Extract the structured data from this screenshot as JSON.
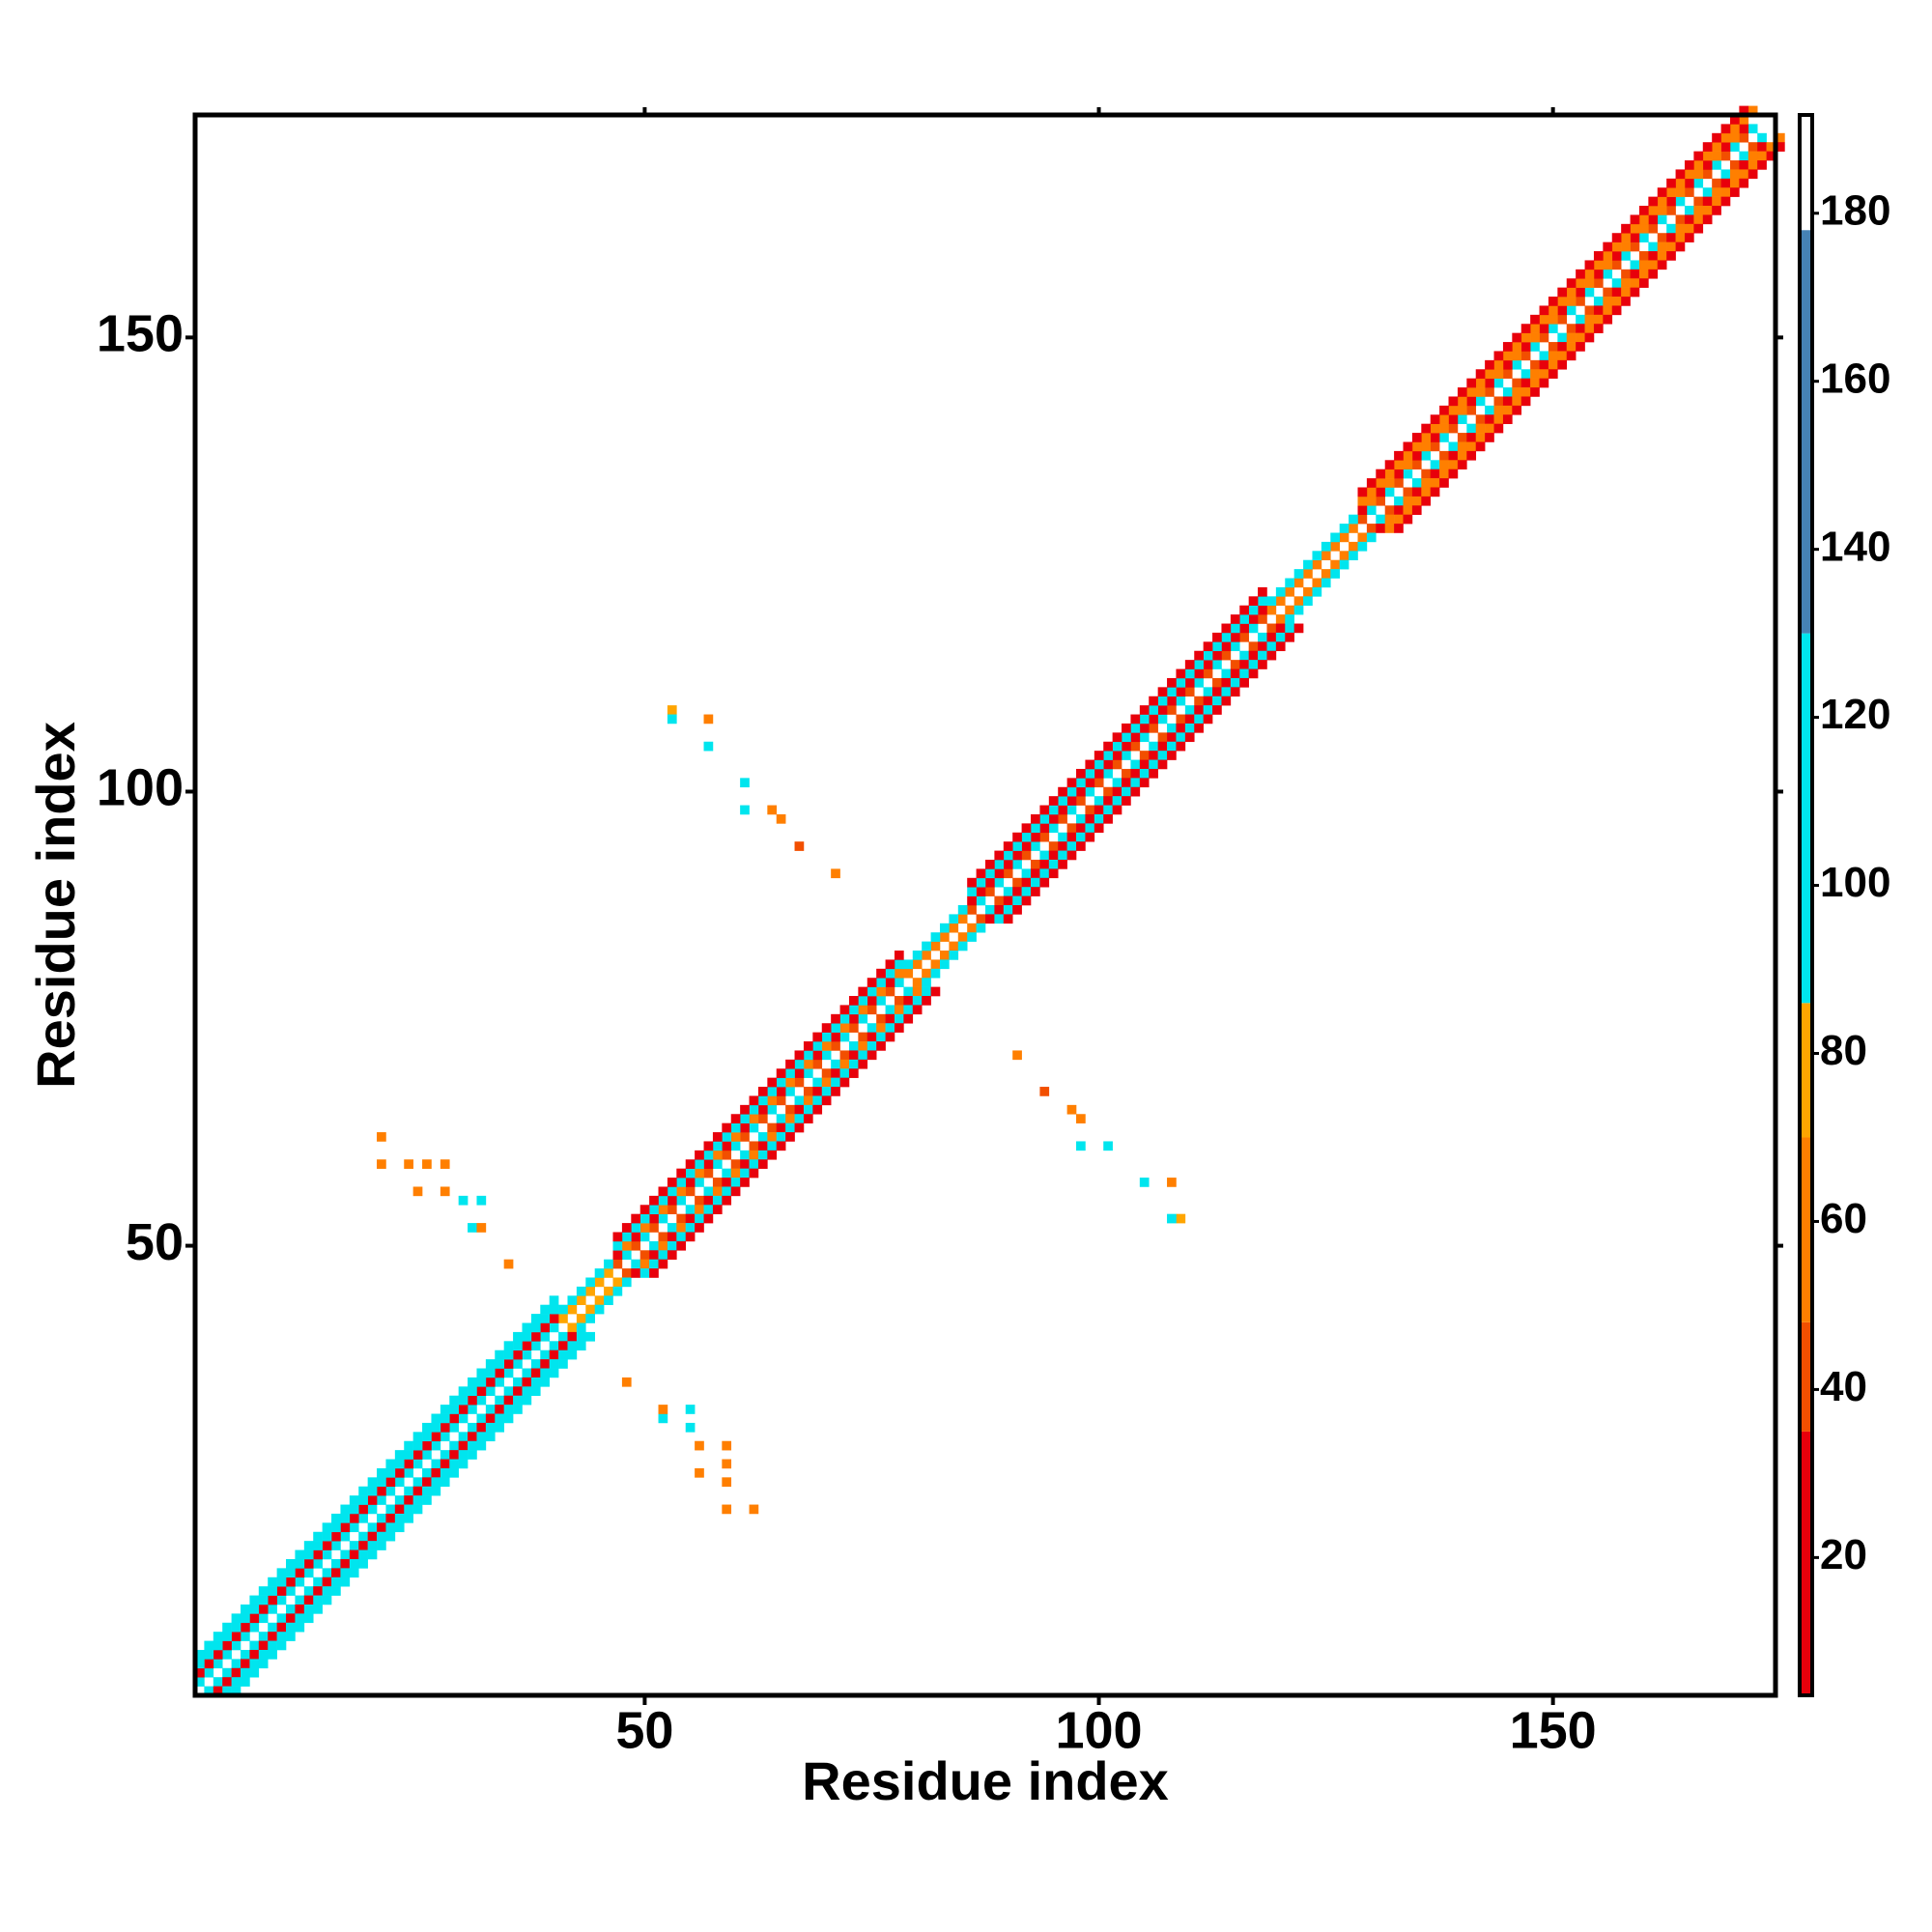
{
  "chart_data": {
    "type": "heatmap",
    "x_label": "Residue index",
    "y_label": "Residue index",
    "xlim": [
      0.5,
      174.5
    ],
    "ylim": [
      0.5,
      174.5
    ],
    "xticks": [
      50,
      100,
      150
    ],
    "yticks": [
      50,
      100,
      150
    ],
    "clim": [
      3.6,
      191.7
    ],
    "cticks": [
      20,
      40,
      60,
      80,
      100,
      120,
      140,
      160,
      180
    ],
    "colormap": [
      [
        35,
        "#e8000b"
      ],
      [
        48,
        "#f24f00"
      ],
      [
        70,
        "#ff7f00"
      ],
      [
        86,
        "#ffa500"
      ],
      [
        130,
        "#00e5ee"
      ],
      [
        178,
        "#4682b4"
      ],
      [
        192,
        "#ffffff"
      ]
    ],
    "symmetric": true,
    "diagonals": [
      {
        "offset": 1,
        "start": 1,
        "values": [
          105,
          105,
          105,
          105,
          105,
          105,
          105,
          105,
          105,
          105,
          105,
          105,
          105,
          105,
          105,
          105,
          105,
          105,
          105,
          105,
          105,
          105,
          105,
          105,
          105,
          105,
          105,
          105,
          105,
          105,
          105,
          105,
          105,
          105,
          105,
          105,
          105,
          105,
          105,
          105,
          75,
          75,
          75,
          75,
          75,
          75,
          45,
          95,
          45,
          95,
          45,
          95,
          45,
          95,
          45,
          95,
          45,
          95,
          45,
          95,
          45,
          95,
          45,
          95,
          45,
          95,
          45,
          95,
          45,
          95,
          45,
          95,
          45,
          95,
          45,
          95,
          45,
          95,
          70,
          70,
          70,
          70,
          70,
          70,
          70,
          45,
          95,
          45,
          95,
          45,
          95,
          45,
          95,
          45,
          95,
          45,
          95,
          45,
          95,
          45,
          95,
          45,
          95,
          45,
          95,
          45,
          95,
          45,
          95,
          45,
          95,
          45,
          95,
          45,
          95,
          45,
          95,
          45,
          70,
          70,
          70,
          70,
          70,
          70,
          70,
          70,
          70,
          70,
          45,
          95,
          45,
          95,
          45,
          95,
          45,
          95,
          45,
          95,
          45,
          95,
          45,
          95,
          45,
          95,
          45,
          95,
          45,
          95,
          45,
          95,
          45,
          95,
          45,
          95,
          45,
          95,
          45,
          95,
          45,
          95,
          45,
          95,
          45,
          95,
          45,
          95,
          45,
          95,
          45,
          95,
          45,
          95
        ]
      },
      {
        "offset": 2,
        "start": 1,
        "values": [
          25,
          25,
          25,
          25,
          25,
          25,
          25,
          25,
          25,
          25,
          25,
          25,
          25,
          25,
          25,
          25,
          25,
          25,
          25,
          25,
          25,
          25,
          25,
          25,
          25,
          25,
          25,
          25,
          25,
          25,
          25,
          25,
          25,
          25,
          25,
          25,
          25,
          25,
          25,
          25,
          100,
          100,
          100,
          100,
          100,
          100,
          20,
          60,
          20,
          60,
          20,
          60,
          20,
          60,
          20,
          60,
          20,
          60,
          20,
          60,
          20,
          60,
          20,
          60,
          20,
          60,
          20,
          60,
          20,
          60,
          20,
          60,
          20,
          60,
          20,
          60,
          20,
          60,
          100,
          100,
          100,
          100,
          100,
          100,
          100,
          20,
          30,
          20,
          30,
          20,
          30,
          20,
          30,
          20,
          30,
          20,
          30,
          20,
          30,
          20,
          30,
          20,
          30,
          20,
          30,
          20,
          30,
          20,
          30,
          20,
          30,
          20,
          30,
          20,
          30,
          20,
          30,
          20,
          100,
          100,
          100,
          100,
          100,
          100,
          100,
          100,
          100,
          100,
          25,
          60,
          25,
          60,
          25,
          60,
          25,
          60,
          25,
          60,
          25,
          60,
          25,
          60,
          25,
          60,
          25,
          60,
          25,
          60,
          25,
          60,
          25,
          60,
          25,
          60,
          25,
          60,
          25,
          60,
          25,
          60,
          25,
          60,
          25,
          60,
          25,
          60,
          25,
          60,
          25,
          60,
          25
        ]
      },
      {
        "offset": 3,
        "start": 1,
        "values": [
          110,
          110,
          110,
          110,
          110,
          110,
          110,
          110,
          110,
          110,
          110,
          110,
          110,
          110,
          110,
          110,
          110,
          110,
          110,
          110,
          110,
          110,
          110,
          110,
          110,
          110,
          110,
          110,
          110,
          110,
          110,
          110,
          110,
          110,
          110,
          110,
          110,
          110,
          110,
          110,
          null,
          null,
          null,
          null,
          null,
          null,
          100,
          100,
          100,
          100,
          100,
          100,
          100,
          100,
          100,
          100,
          100,
          100,
          100,
          100,
          100,
          100,
          100,
          100,
          100,
          100,
          100,
          100,
          100,
          100,
          100,
          100,
          100,
          100,
          100,
          100,
          100,
          100,
          null,
          null,
          null,
          null,
          null,
          null,
          null,
          105,
          105,
          105,
          105,
          105,
          105,
          105,
          105,
          105,
          105,
          105,
          105,
          105,
          105,
          105,
          105,
          105,
          105,
          105,
          105,
          105,
          105,
          105,
          105,
          105,
          105,
          105,
          105,
          105,
          105,
          105,
          105,
          105,
          null,
          null,
          null,
          null,
          null,
          null,
          null,
          null,
          null,
          null,
          55,
          55,
          55,
          55,
          55,
          55,
          55,
          55,
          55,
          55,
          55,
          55,
          55,
          55,
          55,
          55,
          55,
          55,
          55,
          55,
          55,
          55,
          55,
          55,
          55,
          55,
          55,
          55,
          55,
          55,
          55,
          55,
          55,
          55,
          55,
          55,
          55,
          55,
          55,
          55,
          55,
          55,
          55,
          55
        ]
      },
      {
        "offset": 4,
        "start": 1,
        "values": [
          100,
          100,
          100,
          100,
          100,
          100,
          100,
          100,
          100,
          100,
          100,
          100,
          100,
          100,
          100,
          100,
          100,
          100,
          100,
          100,
          100,
          100,
          100,
          100,
          100,
          100,
          100,
          100,
          100,
          100,
          100,
          100,
          100,
          100,
          100,
          100,
          100,
          100,
          100,
          100,
          null,
          null,
          null,
          null,
          null,
          null,
          15,
          15,
          15,
          15,
          15,
          15,
          15,
          15,
          15,
          15,
          15,
          15,
          15,
          15,
          15,
          15,
          15,
          15,
          15,
          15,
          15,
          15,
          15,
          15,
          15,
          15,
          15,
          15,
          15,
          15,
          15,
          15,
          null,
          null,
          null,
          null,
          null,
          null,
          null,
          25,
          25,
          25,
          25,
          25,
          25,
          25,
          25,
          25,
          25,
          25,
          25,
          25,
          25,
          25,
          25,
          25,
          25,
          25,
          25,
          25,
          25,
          25,
          25,
          25,
          25,
          25,
          25,
          25,
          25,
          25,
          25,
          25,
          null,
          null,
          null,
          null,
          null,
          null,
          null,
          null,
          null,
          null,
          18,
          18,
          18,
          18,
          18,
          18,
          18,
          18,
          18,
          18,
          18,
          18,
          18,
          18,
          18,
          18,
          18,
          18,
          18,
          18,
          18,
          18,
          18,
          18,
          18,
          18,
          18,
          18,
          18,
          18,
          18,
          18,
          18,
          18,
          18,
          18,
          18,
          18,
          18,
          18,
          18,
          18,
          18
        ]
      }
    ],
    "contacts": {
      "x": [
        21,
        21,
        24,
        26,
        28,
        28,
        25,
        30,
        32,
        31,
        32,
        35,
        53,
        53,
        57,
        57,
        61,
        61,
        64,
        65,
        67,
        71
      ],
      "y": [
        62,
        59,
        59,
        59,
        59,
        56,
        56,
        55,
        55,
        52,
        52,
        48,
        109,
        108,
        108,
        105,
        101,
        98,
        98,
        97,
        94,
        91
      ],
      "values": [
        70,
        70,
        60,
        60,
        70,
        70,
        70,
        100,
        100,
        130,
        60,
        60,
        75,
        110,
        70,
        100,
        100,
        100,
        60,
        60,
        40,
        70
      ]
    }
  }
}
